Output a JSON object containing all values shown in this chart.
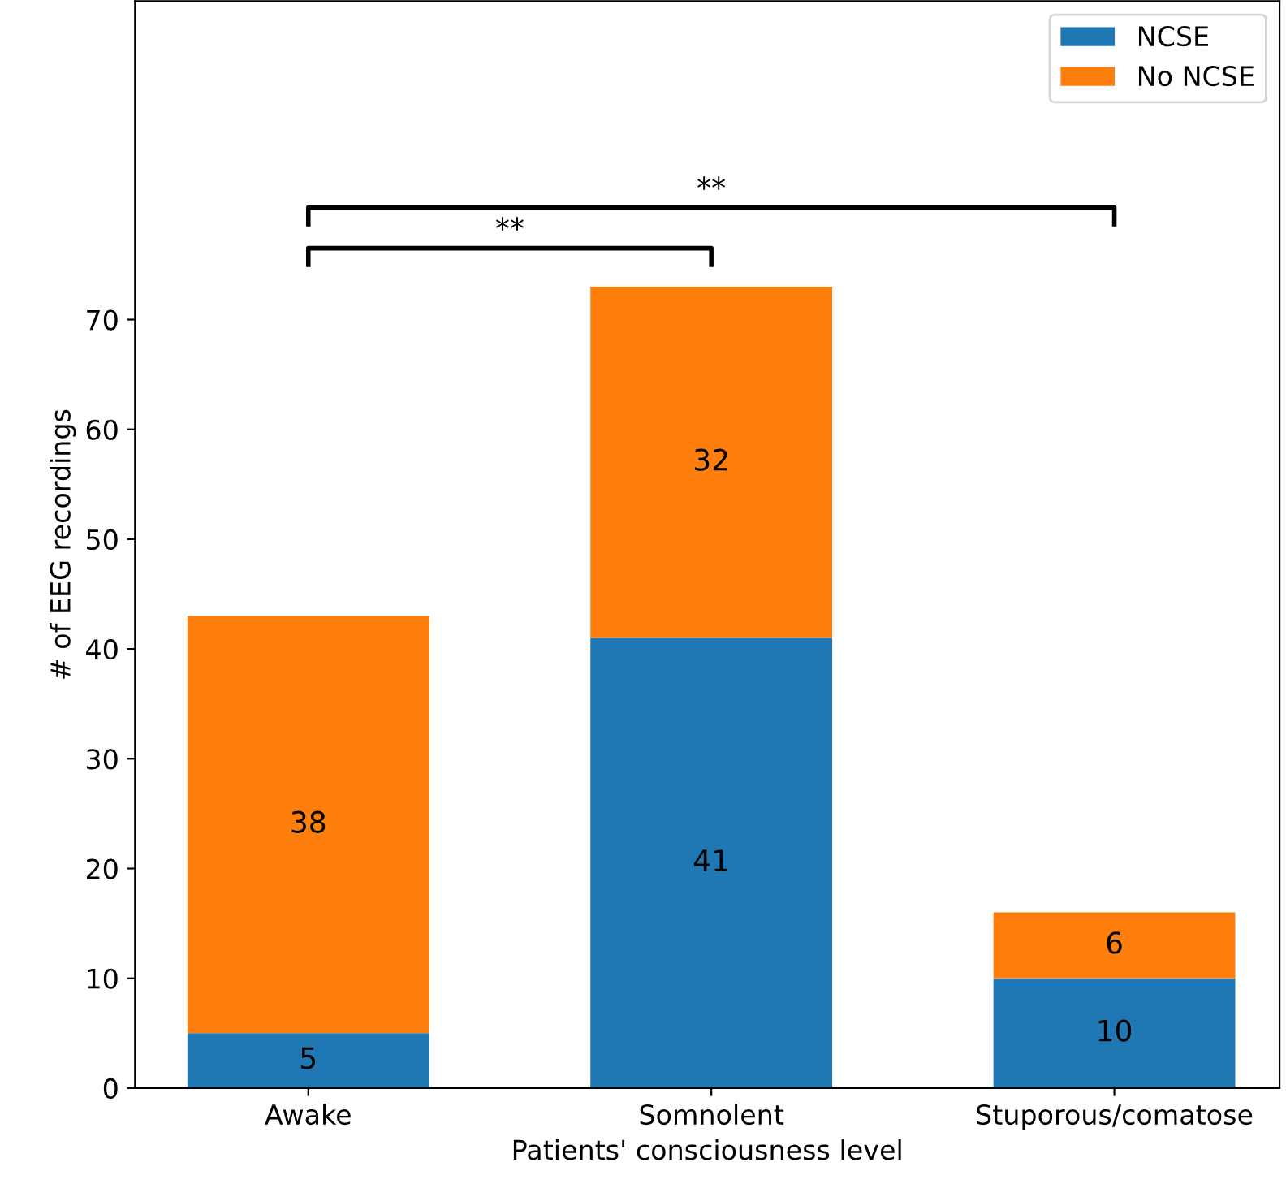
{
  "chart_data": {
    "type": "bar",
    "stacked": true,
    "xlabel": "Patients' consciousness level",
    "ylabel": "# of EEG recordings",
    "categories": [
      "Awake",
      "Somnolent",
      "Stuporous/comatose"
    ],
    "series": [
      {
        "name": "NCSE",
        "color": "#1f77b4",
        "values": [
          5,
          41,
          10
        ]
      },
      {
        "name": "No NCSE",
        "color": "#ff7f0e",
        "values": [
          38,
          32,
          6
        ]
      }
    ],
    "ylim": [
      0,
      99
    ],
    "yticks": [
      0,
      10,
      20,
      30,
      40,
      50,
      60,
      70
    ],
    "data_labels": true,
    "legend": "top right",
    "grid": false,
    "annotations": [
      "**",
      "**"
    ]
  }
}
